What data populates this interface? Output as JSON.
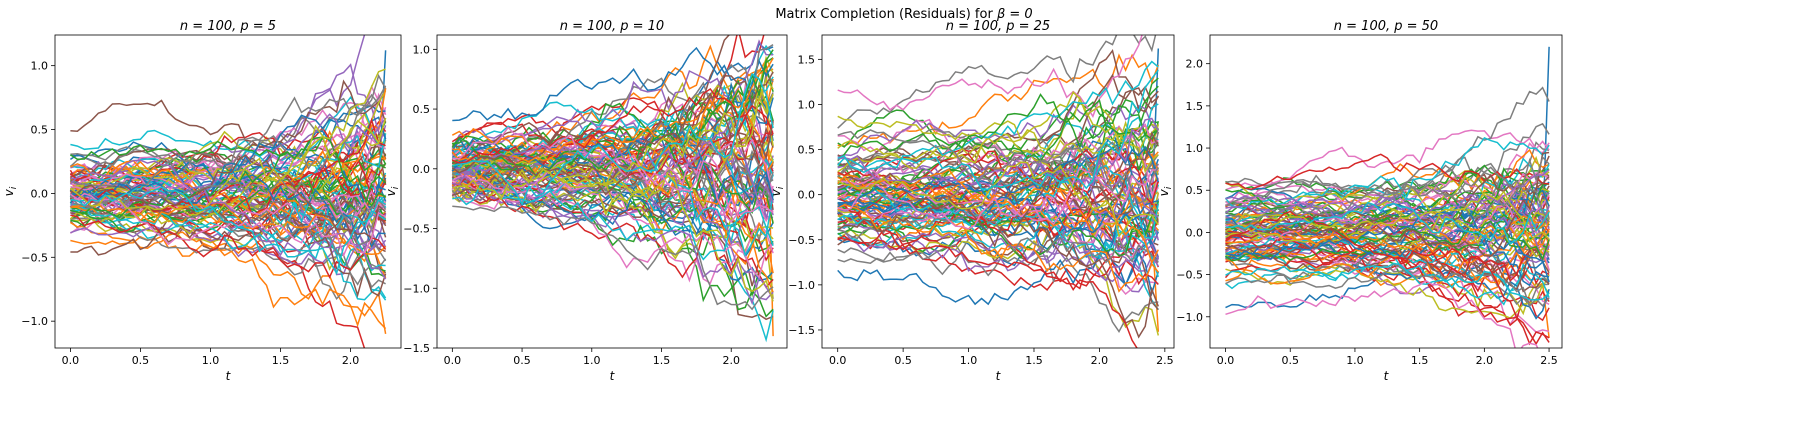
{
  "suptitle": "Matrix Completion (Residuals) for β = 0",
  "palette": [
    "#1f77b4",
    "#ff7f0e",
    "#2ca02c",
    "#d62728",
    "#9467bd",
    "#8c564b",
    "#e377c2",
    "#7f7f7f",
    "#bcbd22",
    "#17becf"
  ],
  "chart_data": [
    {
      "type": "line",
      "title": "n = 100, p = 5",
      "xlabel": "t",
      "ylabel": "v_i",
      "xlim": [
        -0.11,
        2.36
      ],
      "ylim": [
        -1.21,
        1.24
      ],
      "xticks": [
        0.0,
        0.5,
        1.0,
        1.5,
        2.0
      ],
      "xtick_labels": [
        "0.0",
        "0.5",
        "1.0",
        "1.5",
        "2.0"
      ],
      "yticks": [
        -1.0,
        -0.5,
        0.0,
        0.5,
        1.0
      ],
      "ytick_labels": [
        "−1.0",
        "−0.5",
        "0.0",
        "0.5",
        "1.0"
      ],
      "t_max": 2.25,
      "n_series": 100,
      "n_steps": 45,
      "initial_spread": 0.15,
      "walk_volatility": 0.035,
      "peak_spread": 0.55,
      "extreme_max": 1.12,
      "extreme_min": -1.1,
      "seed": 5
    },
    {
      "type": "line",
      "title": "n = 100, p = 10",
      "xlabel": "t",
      "ylabel": "v_i",
      "xlim": [
        -0.11,
        2.4
      ],
      "ylim": [
        -1.5,
        1.12
      ],
      "xticks": [
        0.0,
        0.5,
        1.0,
        1.5,
        2.0
      ],
      "xtick_labels": [
        "0.0",
        "0.5",
        "1.0",
        "1.5",
        "2.0"
      ],
      "yticks": [
        -1.5,
        -1.0,
        -0.5,
        0.0,
        0.5,
        1.0
      ],
      "ytick_labels": [
        "−1.5",
        "−1.0",
        "−0.5",
        "0.0",
        "0.5",
        "1.0"
      ],
      "t_max": 2.3,
      "n_series": 100,
      "n_steps": 46,
      "initial_spread": 0.14,
      "walk_volatility": 0.045,
      "peak_spread": 0.45,
      "extreme_max": 1.02,
      "extreme_min": -1.4,
      "seed": 10
    },
    {
      "type": "line",
      "title": "n = 100, p = 25",
      "xlabel": "t",
      "ylabel": "v_i",
      "xlim": [
        -0.12,
        2.57
      ],
      "ylim": [
        -1.7,
        1.77
      ],
      "xticks": [
        0.0,
        0.5,
        1.0,
        1.5,
        2.0,
        2.5
      ],
      "xtick_labels": [
        "0.0",
        "0.5",
        "1.0",
        "1.5",
        "2.0",
        "2.5"
      ],
      "yticks": [
        -1.5,
        -1.0,
        -0.5,
        0.0,
        0.5,
        1.0,
        1.5
      ],
      "ytick_labels": [
        "−1.5",
        "−1.0",
        "−0.5",
        "0.0",
        "0.5",
        "1.0",
        "1.5"
      ],
      "t_max": 2.45,
      "n_series": 100,
      "n_steps": 49,
      "initial_spread": 0.32,
      "walk_volatility": 0.05,
      "peak_spread": 0.35,
      "extreme_max": 1.62,
      "extreme_min": -1.52,
      "seed": 25
    },
    {
      "type": "line",
      "title": "n = 100, p = 50",
      "xlabel": "t",
      "ylabel": "v_i",
      "xlim": [
        -0.12,
        2.6
      ],
      "ylim": [
        -1.37,
        2.34
      ],
      "xticks": [
        0.0,
        0.5,
        1.0,
        1.5,
        2.0,
        2.5
      ],
      "xtick_labels": [
        "0.0",
        "0.5",
        "1.0",
        "1.5",
        "2.0",
        "2.5"
      ],
      "yticks": [
        -1.0,
        -0.5,
        0.0,
        0.5,
        1.0,
        1.5,
        2.0
      ],
      "ytick_labels": [
        "−1.0",
        "−0.5",
        "0.0",
        "0.5",
        "1.0",
        "1.5",
        "2.0"
      ],
      "t_max": 2.5,
      "n_series": 100,
      "n_steps": 50,
      "initial_spread": 0.3,
      "walk_volatility": 0.04,
      "peak_spread": 0.3,
      "extreme_max": 2.2,
      "extreme_min": -1.25,
      "seed": 50
    }
  ]
}
